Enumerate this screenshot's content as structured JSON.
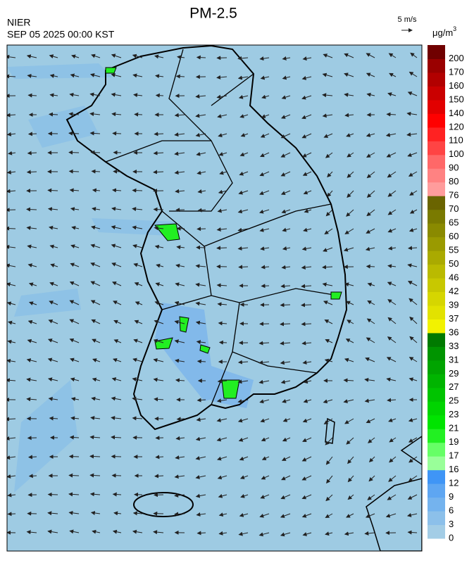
{
  "header": {
    "title": "PM-2.5",
    "agency": "NIER",
    "datetime": "SEP 05 2025 00:00 KST",
    "wind_scale": "5 m/s",
    "unit": "μg/m",
    "unit_power": "3"
  },
  "colorbar": {
    "levels": [
      0,
      3,
      6,
      9,
      12,
      16,
      17,
      19,
      21,
      23,
      25,
      27,
      29,
      31,
      33,
      36,
      37,
      39,
      42,
      46,
      50,
      55,
      60,
      65,
      70,
      76,
      80,
      90,
      100,
      110,
      120,
      140,
      150,
      160,
      170,
      200
    ],
    "colors": [
      "#a3cde6",
      "#8cc0ea",
      "#74b3ee",
      "#5ea6f2",
      "#3f95f6",
      "#99ff99",
      "#66ff66",
      "#22f022",
      "#00e400",
      "#00d400",
      "#00c400",
      "#00b400",
      "#00a400",
      "#009400",
      "#007a00",
      "#f2f200",
      "#e2e200",
      "#d6d600",
      "#c8c800",
      "#baba00",
      "#aaaa00",
      "#9a9a00",
      "#8a8a00",
      "#7a7a00",
      "#6a6400",
      "#ff9c9c",
      "#ff8282",
      "#ff6868",
      "#ff4444",
      "#ff2222",
      "#ff0000",
      "#e20000",
      "#ca0000",
      "#b20000",
      "#9a0000",
      "#700000"
    ]
  }
}
